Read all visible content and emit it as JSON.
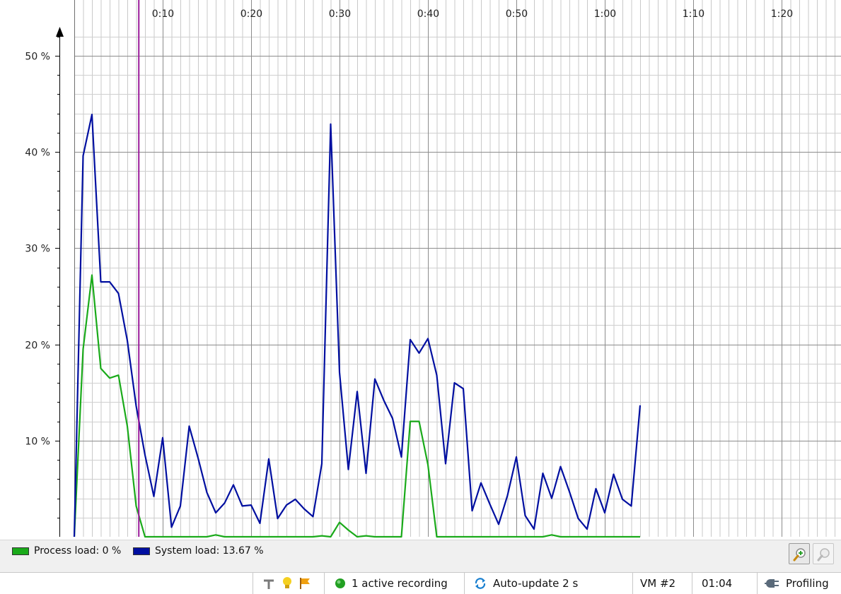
{
  "chart_data": {
    "type": "line",
    "x_unit": "seconds",
    "x_ticks": [
      "0:10",
      "0:20",
      "0:30",
      "0:40",
      "0:50",
      "1:00",
      "1:10",
      "1:20"
    ],
    "y_ticks": [
      "10 %",
      "20 %",
      "30 %",
      "40 %",
      "50 %"
    ],
    "xlim": [
      0,
      87
    ],
    "ylim": [
      0,
      53
    ],
    "grid": true,
    "marker_time": 7.3,
    "series": [
      {
        "name": "Process load: 0 %",
        "color": "#1aaa1a",
        "points": [
          [
            0,
            0
          ],
          [
            1,
            19.5
          ],
          [
            2,
            27.2
          ],
          [
            3,
            17.5
          ],
          [
            4,
            16.5
          ],
          [
            5,
            16.8
          ],
          [
            6,
            11.5
          ],
          [
            7,
            3.2
          ],
          [
            8,
            0
          ],
          [
            9,
            0
          ],
          [
            10,
            0
          ],
          [
            11,
            0
          ],
          [
            12,
            0
          ],
          [
            13,
            0
          ],
          [
            14,
            0
          ],
          [
            15,
            0
          ],
          [
            16,
            0.2
          ],
          [
            17,
            0
          ],
          [
            18,
            0
          ],
          [
            19,
            0
          ],
          [
            20,
            0
          ],
          [
            21,
            0
          ],
          [
            22,
            0
          ],
          [
            23,
            0
          ],
          [
            24,
            0
          ],
          [
            25,
            0
          ],
          [
            26,
            0
          ],
          [
            27,
            0
          ],
          [
            28,
            0.1
          ],
          [
            29,
            0
          ],
          [
            30,
            1.5
          ],
          [
            31,
            0.7
          ],
          [
            32,
            0
          ],
          [
            33,
            0.1
          ],
          [
            34,
            0
          ],
          [
            35,
            0
          ],
          [
            36,
            0
          ],
          [
            37,
            0
          ],
          [
            38,
            12
          ],
          [
            39,
            12
          ],
          [
            40,
            7.5
          ],
          [
            41,
            0
          ],
          [
            42,
            0
          ],
          [
            43,
            0
          ],
          [
            44,
            0
          ],
          [
            45,
            0
          ],
          [
            46,
            0
          ],
          [
            47,
            0
          ],
          [
            48,
            0
          ],
          [
            49,
            0
          ],
          [
            50,
            0
          ],
          [
            51,
            0
          ],
          [
            52,
            0
          ],
          [
            53,
            0
          ],
          [
            54,
            0.2
          ],
          [
            55,
            0
          ],
          [
            56,
            0
          ],
          [
            57,
            0
          ],
          [
            58,
            0
          ],
          [
            59,
            0
          ],
          [
            60,
            0
          ],
          [
            61,
            0
          ],
          [
            62,
            0
          ],
          [
            63,
            0
          ],
          [
            64,
            0
          ]
        ]
      },
      {
        "name": "System load: 13.67 %",
        "color": "#000fa0",
        "points": [
          [
            0,
            0
          ],
          [
            1,
            39.6
          ],
          [
            2,
            43.9
          ],
          [
            3,
            26.5
          ],
          [
            4,
            26.5
          ],
          [
            5,
            25.3
          ],
          [
            6,
            20.4
          ],
          [
            7,
            13.6
          ],
          [
            8,
            8.5
          ],
          [
            9,
            4.2
          ],
          [
            10,
            10.3
          ],
          [
            11,
            1
          ],
          [
            12,
            3.2
          ],
          [
            13,
            11.5
          ],
          [
            14,
            8.2
          ],
          [
            15,
            4.6
          ],
          [
            16,
            2.5
          ],
          [
            17,
            3.5
          ],
          [
            18,
            5.4
          ],
          [
            19,
            3.2
          ],
          [
            20,
            3.3
          ],
          [
            21,
            1.4
          ],
          [
            22,
            8.1
          ],
          [
            23,
            1.9
          ],
          [
            24,
            3.3
          ],
          [
            25,
            3.9
          ],
          [
            26,
            2.9
          ],
          [
            27,
            2.1
          ],
          [
            28,
            7.6
          ],
          [
            29,
            42.9
          ],
          [
            30,
            17.1
          ],
          [
            31,
            7
          ],
          [
            32,
            15.1
          ],
          [
            33,
            6.6
          ],
          [
            34,
            16.4
          ],
          [
            35,
            14.2
          ],
          [
            36,
            12.3
          ],
          [
            37,
            8.3
          ],
          [
            38,
            20.5
          ],
          [
            39,
            19.1
          ],
          [
            40,
            20.6
          ],
          [
            41,
            16.8
          ],
          [
            42,
            7.6
          ],
          [
            43,
            16
          ],
          [
            44,
            15.4
          ],
          [
            45,
            2.7
          ],
          [
            46,
            5.6
          ],
          [
            47,
            3.4
          ],
          [
            48,
            1.3
          ],
          [
            49,
            4.3
          ],
          [
            50,
            8.3
          ],
          [
            51,
            2.2
          ],
          [
            52,
            0.8
          ],
          [
            53,
            6.6
          ],
          [
            54,
            4
          ],
          [
            55,
            7.3
          ],
          [
            56,
            4.7
          ],
          [
            57,
            1.9
          ],
          [
            58,
            0.8
          ],
          [
            59,
            5
          ],
          [
            60,
            2.5
          ],
          [
            61,
            6.5
          ],
          [
            62,
            3.9
          ],
          [
            63,
            3.2
          ],
          [
            64,
            13.67
          ]
        ]
      }
    ]
  },
  "legend": {
    "process_label": "Process load: 0 %",
    "process_color": "#1aaa1a",
    "system_label": "System load: 13.67 %",
    "system_color": "#000fa0"
  },
  "toolbar": {
    "zoom_in_icon": "zoom-in-icon",
    "zoom_out_icon": "zoom-out-icon"
  },
  "statusbar": {
    "icons": [
      "pin-icon",
      "lightbulb-icon",
      "flag-icon"
    ],
    "recording": "1 active recording",
    "autoupdate": "Auto-update 2 s",
    "vm": "VM #2",
    "time": "01:04",
    "mode": "Profiling"
  }
}
